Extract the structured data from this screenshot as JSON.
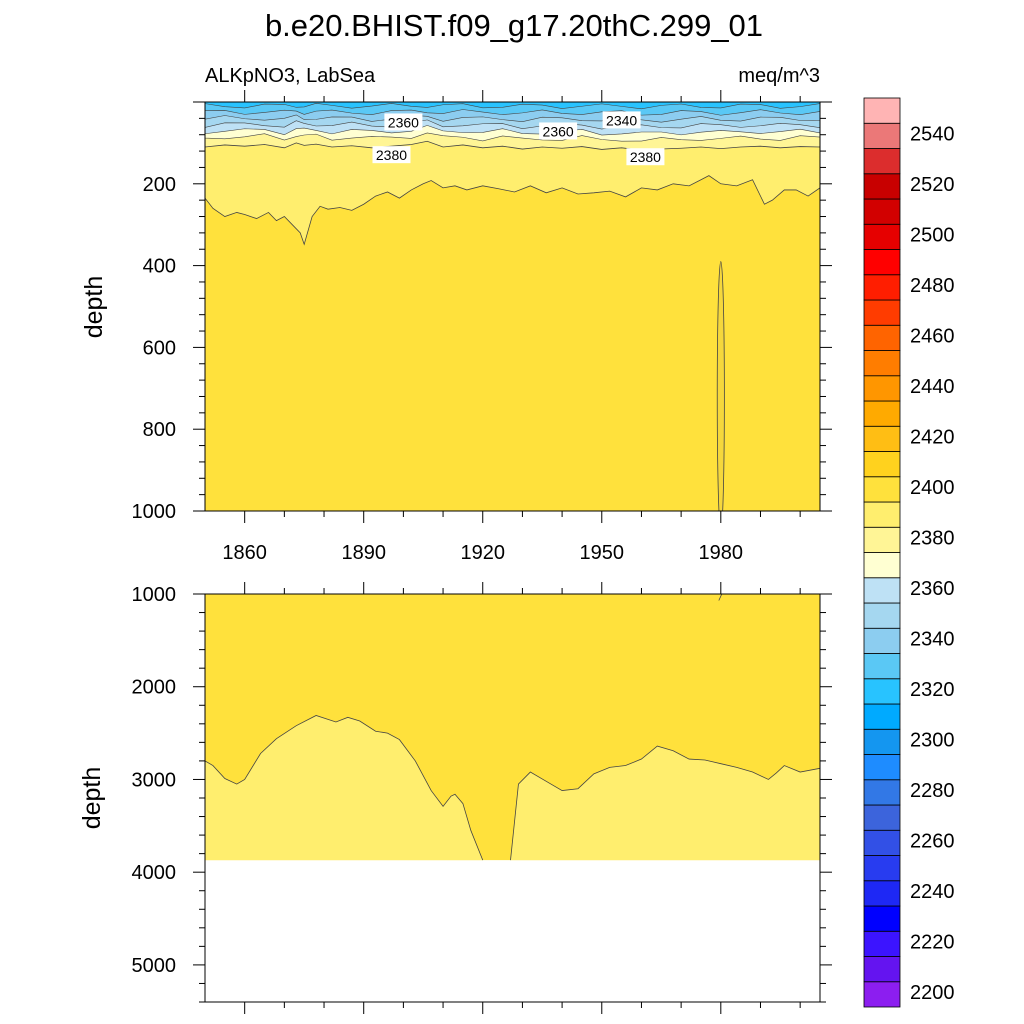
{
  "chart_data": {
    "type": "heatmap",
    "title": "b.e20.BHIST.f09_g17.20thC.299_01",
    "variable": "ALKpNO3, LabSea",
    "units": "meq/m^3",
    "ylabel": "depth",
    "xlim": [
      1850,
      2005
    ],
    "xticks": [
      1860,
      1890,
      1920,
      1950,
      1980
    ],
    "y_reversed": true,
    "panels": [
      {
        "name": "upper",
        "ylim": [
          0,
          1000
        ],
        "yticks": [
          200,
          400,
          600,
          800,
          1000
        ],
        "contour_labels": [
          {
            "text": "2360",
            "x": 1900,
            "y": 50
          },
          {
            "text": "2360",
            "x": 1939,
            "y": 72
          },
          {
            "text": "2340",
            "x": 1955,
            "y": 45
          },
          {
            "text": "2380",
            "x": 1897,
            "y": 130
          },
          {
            "text": "2380",
            "x": 1961,
            "y": 135
          }
        ],
        "level_2380_depth": {
          "x": [
            1850,
            1855,
            1860,
            1865,
            1870,
            1873,
            1875,
            1878,
            1882,
            1887,
            1892,
            1897,
            1902,
            1906,
            1910,
            1915,
            1920,
            1925,
            1930,
            1935,
            1940,
            1945,
            1950,
            1955,
            1960,
            1965,
            1970,
            1975,
            1980,
            1985,
            1990,
            1995,
            2000,
            2005
          ],
          "y": [
            110,
            105,
            108,
            104,
            112,
            100,
            106,
            103,
            110,
            107,
            112,
            108,
            104,
            96,
            110,
            105,
            112,
            108,
            115,
            110,
            113,
            109,
            116,
            112,
            118,
            115,
            113,
            110,
            114,
            110,
            108,
            112,
            109,
            110
          ]
        },
        "level_2390_depth": {
          "x": [
            1850,
            1852,
            1855,
            1858,
            1860,
            1863,
            1866,
            1868,
            1870,
            1872,
            1874,
            1875,
            1877,
            1879,
            1881,
            1884,
            1887,
            1890,
            1893,
            1896,
            1899,
            1902,
            1905,
            1907,
            1910,
            1913,
            1916,
            1920,
            1924,
            1928,
            1932,
            1936,
            1940,
            1944,
            1948,
            1952,
            1956,
            1960,
            1964,
            1968,
            1972,
            1975,
            1977,
            1980,
            1984,
            1988,
            1991,
            1993,
            1996,
            1999,
            2002,
            2005
          ],
          "y": [
            235,
            260,
            280,
            270,
            275,
            285,
            270,
            290,
            280,
            300,
            320,
            348,
            280,
            255,
            262,
            258,
            265,
            250,
            230,
            220,
            235,
            215,
            200,
            192,
            210,
            205,
            215,
            205,
            212,
            220,
            205,
            222,
            210,
            225,
            222,
            218,
            232,
            210,
            215,
            200,
            205,
            190,
            180,
            200,
            205,
            190,
            250,
            240,
            215,
            215,
            230,
            210
          ]
        },
        "anomaly_2400": {
          "x_center": 1980,
          "x_halfwidth": 0.9,
          "top": 390,
          "bottom": 1000
        }
      },
      {
        "name": "lower",
        "ylim": [
          1000,
          5400
        ],
        "yticks": [
          1000,
          2000,
          3000,
          4000,
          5000
        ],
        "bottom_of_data": 3870,
        "level_2390_depth": {
          "x": [
            1850,
            1852,
            1855,
            1858,
            1860,
            1864,
            1868,
            1873,
            1878,
            1883,
            1886,
            1889,
            1893,
            1896,
            1899,
            1903,
            1907,
            1910,
            1912,
            1913,
            1915,
            1917,
            1920
          ],
          "y": [
            2800,
            2850,
            2990,
            3050,
            3000,
            2720,
            2560,
            2420,
            2310,
            2380,
            2330,
            2370,
            2480,
            2500,
            2570,
            2800,
            3120,
            3290,
            3180,
            3160,
            3260,
            3550,
            3870
          ]
        },
        "level_2390_depth_right": {
          "x": [
            1927,
            1929,
            1932,
            1936,
            1940,
            1944,
            1948,
            1952,
            1956,
            1960,
            1964,
            1968,
            1972,
            1976,
            1980,
            1984,
            1988,
            1992,
            1994,
            1996,
            2000,
            2005
          ],
          "y": [
            3870,
            3050,
            2920,
            3020,
            3120,
            3100,
            2940,
            2870,
            2850,
            2780,
            2640,
            2690,
            2780,
            2790,
            2830,
            2870,
            2920,
            3000,
            2930,
            2850,
            2920,
            2880
          ]
        }
      }
    ],
    "colorbar": {
      "levels": [
        2200,
        2210,
        2220,
        2230,
        2240,
        2250,
        2260,
        2270,
        2280,
        2290,
        2300,
        2310,
        2320,
        2330,
        2340,
        2350,
        2360,
        2370,
        2380,
        2390,
        2400,
        2410,
        2420,
        2430,
        2440,
        2450,
        2460,
        2470,
        2480,
        2490,
        2500,
        2510,
        2520,
        2530,
        2540,
        2550
      ],
      "labels": [
        "2200",
        "2220",
        "2240",
        "2260",
        "2280",
        "2300",
        "2320",
        "2340",
        "2360",
        "2380",
        "2400",
        "2420",
        "2440",
        "2460",
        "2480",
        "2500",
        "2520",
        "2540"
      ],
      "colors": [
        "#8c1ef0",
        "#6414f0",
        "#3c14ff",
        "#0000ff",
        "#1e28f5",
        "#283cf0",
        "#3250e6",
        "#3c64dc",
        "#3278e6",
        "#1e8cff",
        "#1496f0",
        "#00aaff",
        "#28c3ff",
        "#5ac8f5",
        "#8ccdf0",
        "#a5d7f0",
        "#bee1f5",
        "#ffffd2",
        "#fff596",
        "#ffee6e",
        "#ffe13c",
        "#ffd21e",
        "#ffbe14",
        "#ffaa00",
        "#ff9600",
        "#ff7d00",
        "#ff6400",
        "#ff3c00",
        "#ff1e00",
        "#ff0000",
        "#e60000",
        "#d20000",
        "#c80000",
        "#dc2d2d",
        "#eb7878",
        "#ffb4b4"
      ]
    }
  }
}
